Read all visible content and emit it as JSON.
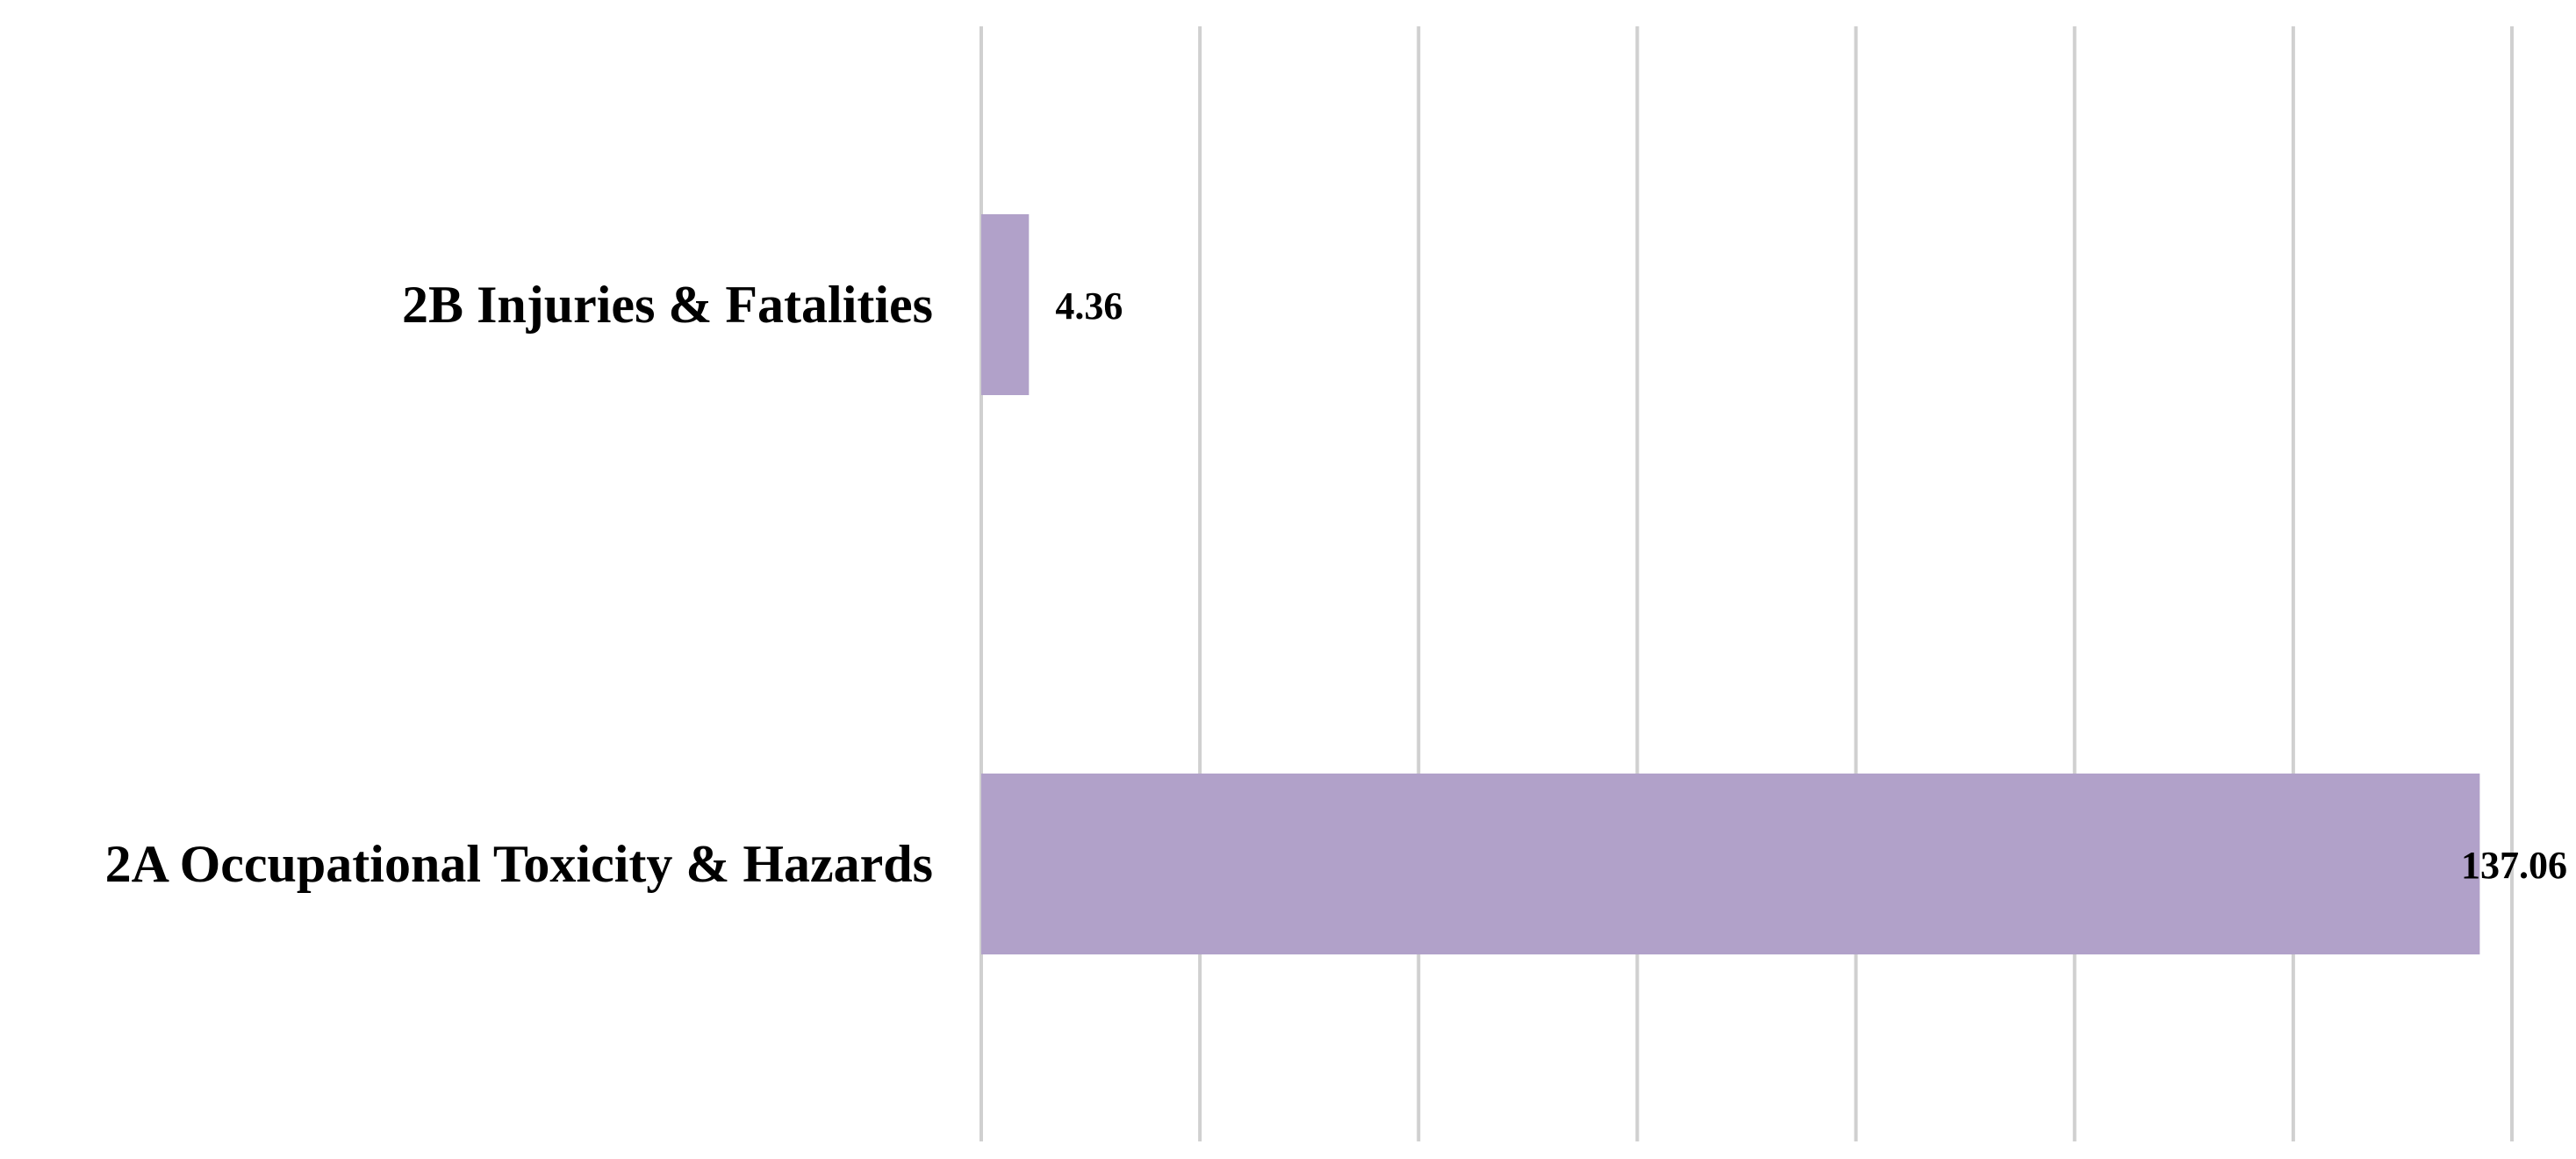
{
  "chart_data": {
    "type": "bar",
    "orientation": "horizontal",
    "categories": [
      "2B Injuries & Fatalities",
      "2A Occupational Toxicity & Hazards"
    ],
    "values": [
      4.36,
      137.06
    ],
    "value_labels": [
      "4.36",
      "137.06"
    ],
    "title": "",
    "xlabel": "",
    "ylabel": "",
    "xlim": [
      0,
      140
    ],
    "gridline_step": 20,
    "grid": true,
    "tick_labels_shown": false,
    "legend": "none",
    "bar_color": "#b1a1c9",
    "gridline_color": "#d0d0d0"
  }
}
